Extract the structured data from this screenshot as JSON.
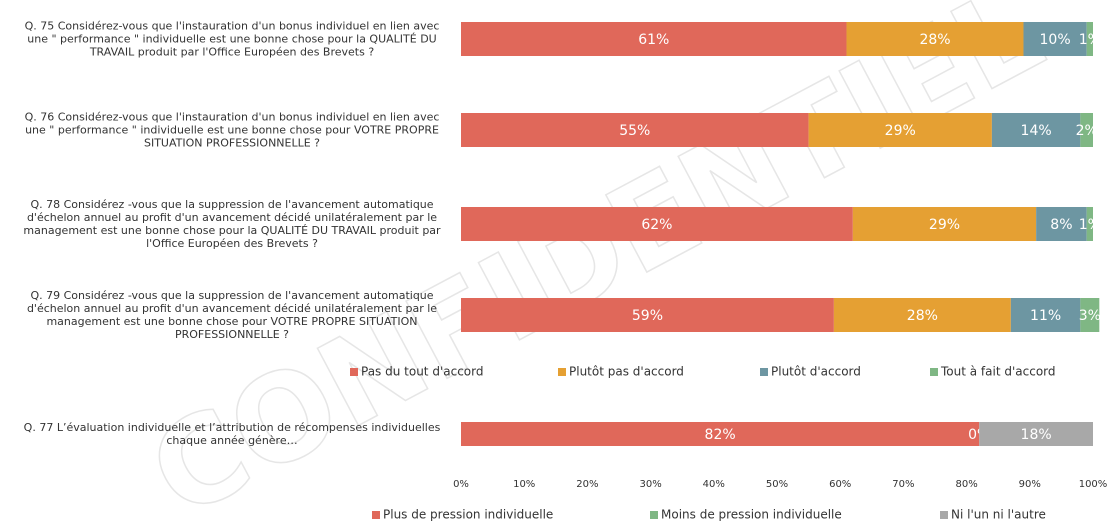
{
  "watermark": "CONFIDENTIEL",
  "chart_data": [
    {
      "type": "bar",
      "orientation": "horizontal",
      "stacked": true,
      "categories": [
        "Q. 75 Considérez-vous que l'instauration d'un bonus individuel en lien avec une \" performance \" individuelle est une bonne chose pour la QUALITÉ DU TRAVAIL produit par l'Office Européen des Brevets ?",
        "Q. 76 Considérez-vous que l'instauration d'un bonus individuel en lien avec une \" performance \" individuelle est une bonne chose pour VOTRE PROPRE SITUATION PROFESSIONNELLE ?",
        "Q. 78 Considérez -vous que la suppression de l'avancement automatique d'échelon annuel au profit d'un avancement décidé unilatéralement par le management est une bonne chose pour la QUALITÉ DU TRAVAIL produit par l'Office Européen des Brevets ?",
        "Q. 79 Considérez -vous que la suppression de l'avancement automatique d'échelon annuel au profit d'un avancement décidé unilatéralement par le management est une bonne chose pour VOTRE PROPRE SITUATION PROFESSIONNELLE ?"
      ],
      "series": [
        {
          "name": "Pas du tout d'accord",
          "color": "#e0685a",
          "values": [
            61,
            55,
            62,
            59
          ],
          "value_labels": [
            "61%",
            "55%",
            "62%",
            "59%"
          ]
        },
        {
          "name": "Plutôt pas d'accord",
          "color": "#e5a033",
          "values": [
            28,
            29,
            29,
            28
          ],
          "value_labels": [
            "28%",
            "29%",
            "29%",
            "28%"
          ]
        },
        {
          "name": "Plutôt d'accord",
          "color": "#6d96a2",
          "values": [
            10,
            14,
            8,
            11
          ],
          "value_labels": [
            "10%",
            "14%",
            "8%",
            "11%"
          ]
        },
        {
          "name": "Tout à fait d'accord",
          "color": "#7fb784",
          "values": [
            1,
            2,
            1,
            3
          ],
          "value_labels": [
            "1%",
            "2%",
            "1%",
            "3%"
          ]
        }
      ],
      "xlim": [
        0,
        100
      ]
    },
    {
      "type": "bar",
      "orientation": "horizontal",
      "stacked": true,
      "categories": [
        "Q. 77 L’évaluation individuelle et l’attribution de récompenses individuelles chaque année génère…"
      ],
      "series": [
        {
          "name": "Plus de pression individuelle",
          "color": "#e0685a",
          "values": [
            82
          ],
          "value_labels": [
            "82%"
          ]
        },
        {
          "name": "Moins de pression individuelle",
          "color": "#7fb784",
          "values": [
            0
          ],
          "value_labels": [
            "0%"
          ]
        },
        {
          "name": "Ni l'un ni l'autre",
          "color": "#a8a8a8",
          "values": [
            18
          ],
          "value_labels": [
            "18%"
          ]
        }
      ],
      "xlim": [
        0,
        100
      ],
      "xticks": [
        {
          "value": 0,
          "label": "0%"
        },
        {
          "value": 10,
          "label": "10%"
        },
        {
          "value": 20,
          "label": "20%"
        },
        {
          "value": 30,
          "label": "30%"
        },
        {
          "value": 40,
          "label": "40%"
        },
        {
          "value": 50,
          "label": "50%"
        },
        {
          "value": 60,
          "label": "60%"
        },
        {
          "value": 70,
          "label": "70%"
        },
        {
          "value": 80,
          "label": "80%"
        },
        {
          "value": 90,
          "label": "90%"
        },
        {
          "value": 100,
          "label": "100%"
        }
      ]
    }
  ]
}
